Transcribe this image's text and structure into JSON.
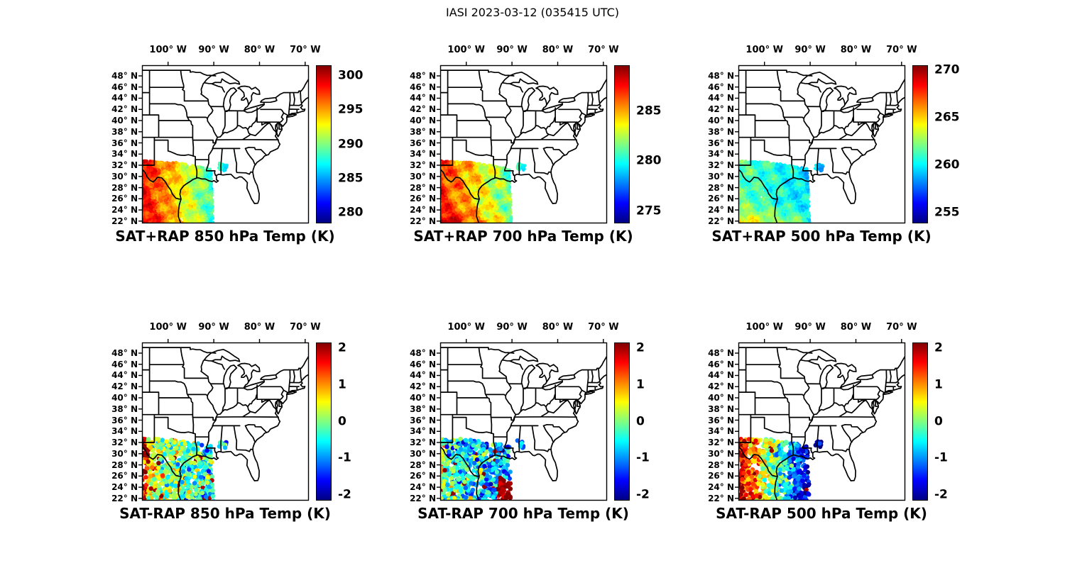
{
  "title": "IASI 2023-03-12 (035415 UTC)",
  "chart_data": {
    "type": "scatter",
    "title": "IASI 2023-03-12 (035415 UTC)",
    "colormap": "jet",
    "grid": {
      "rows": 2,
      "cols": 3
    },
    "map": {
      "lon_range": [
        -105.7,
        -69.2
      ],
      "lat_range": [
        21.6,
        49.9
      ],
      "lon_ticks": [
        {
          "value": -100,
          "label": "100° W"
        },
        {
          "value": -90,
          "label": "90° W"
        },
        {
          "value": -80,
          "label": "80° W"
        },
        {
          "value": -70,
          "label": "70° W"
        }
      ],
      "lat_ticks": [
        {
          "value": 48,
          "label": "48° N"
        },
        {
          "value": 46,
          "label": "46° N"
        },
        {
          "value": 44,
          "label": "44° N"
        },
        {
          "value": 42,
          "label": "42° N"
        },
        {
          "value": 40,
          "label": "40° N"
        },
        {
          "value": 38,
          "label": "38° N"
        },
        {
          "value": 36,
          "label": "36° N"
        },
        {
          "value": 34,
          "label": "34° N"
        },
        {
          "value": 32,
          "label": "32° N"
        },
        {
          "value": 30,
          "label": "30° N"
        },
        {
          "value": 28,
          "label": "28° N"
        },
        {
          "value": 26,
          "label": "26° N"
        },
        {
          "value": 24,
          "label": "24° N"
        },
        {
          "value": 22,
          "label": "22° N"
        }
      ]
    },
    "swath": {
      "main_polygon": [
        [
          -105.8,
          32.8
        ],
        [
          -98.5,
          32.55
        ],
        [
          -90.6,
          31.4
        ],
        [
          -90.05,
          21.4
        ],
        [
          -105.8,
          21.4
        ]
      ],
      "east_patch_polygon": [
        [
          -88.8,
          32.4
        ],
        [
          -87.1,
          32.0
        ],
        [
          -87.35,
          30.9
        ],
        [
          -88.9,
          31.3
        ]
      ]
    },
    "panels": [
      {
        "id": "sat-plus-rap-850",
        "caption": "SAT+RAP 850 hPa Temp (K)",
        "quantity": "SAT+RAP",
        "level_hPa": 850,
        "units": "K",
        "colorbar": {
          "min": 278.5,
          "max": 301.5,
          "ticks": [
            280,
            285,
            290,
            295,
            300
          ]
        },
        "field": {
          "west": 0.88,
          "east": 0.42,
          "wiggle": 0.09,
          "south": 0.04
        },
        "seed": 11
      },
      {
        "id": "sat-plus-rap-700",
        "caption": "SAT+RAP 700 hPa Temp (K)",
        "quantity": "SAT+RAP",
        "level_hPa": 700,
        "units": "K",
        "colorbar": {
          "min": 273.8,
          "max": 289.6,
          "ticks": [
            275,
            280,
            285
          ]
        },
        "field": {
          "west": 0.84,
          "east": 0.46,
          "wiggle": 0.11,
          "south": 0.14
        },
        "seed": 22
      },
      {
        "id": "sat-plus-rap-500",
        "caption": "SAT+RAP 500 hPa Temp (K)",
        "quantity": "SAT+RAP",
        "level_hPa": 500,
        "units": "K",
        "colorbar": {
          "min": 253.9,
          "max": 270.5,
          "ticks": [
            255,
            260,
            265,
            270
          ]
        },
        "field": {
          "west": 0.47,
          "east": 0.34,
          "wiggle": 0.08,
          "south": 0.2
        },
        "seed": 33
      },
      {
        "id": "sat-minus-rap-850",
        "caption": "SAT-RAP 850 hPa Temp (K)",
        "quantity": "SAT-RAP",
        "level_hPa": 850,
        "units": "K",
        "colorbar": {
          "min": -2.15,
          "max": 2.15,
          "ticks": [
            -2,
            -1,
            0,
            1,
            2
          ]
        },
        "diff": {
          "west": 0.45,
          "east": -0.55,
          "noise": 1.0,
          "west_edge": 1.3,
          "se": 0,
          "outliers": 0.05
        },
        "seed": 44
      },
      {
        "id": "sat-minus-rap-700",
        "caption": "SAT-RAP 700 hPa Temp (K)",
        "quantity": "SAT-RAP",
        "level_hPa": 700,
        "units": "K",
        "colorbar": {
          "min": -2.15,
          "max": 2.15,
          "ticks": [
            -2,
            -1,
            0,
            1,
            2
          ]
        },
        "diff": {
          "west": -0.25,
          "east": -0.9,
          "noise": 1.1,
          "west_edge": 0.3,
          "se": 1.9,
          "outliers": 0.03
        },
        "seed": 55
      },
      {
        "id": "sat-minus-rap-500",
        "caption": "SAT-RAP 500 hPa Temp (K)",
        "quantity": "SAT-RAP",
        "level_hPa": 500,
        "units": "K",
        "colorbar": {
          "min": -2.15,
          "max": 2.15,
          "ticks": [
            -2,
            -1,
            0,
            1,
            2
          ]
        },
        "diff": {
          "west": 1.7,
          "east": -1.8,
          "noise": 0.9,
          "west_edge": 0.2,
          "se": 0,
          "outliers": 0.01
        },
        "seed": 66
      }
    ],
    "render": {
      "retrieval_sample_attempts": 5200,
      "difference_sample_attempts": 1050
    }
  }
}
